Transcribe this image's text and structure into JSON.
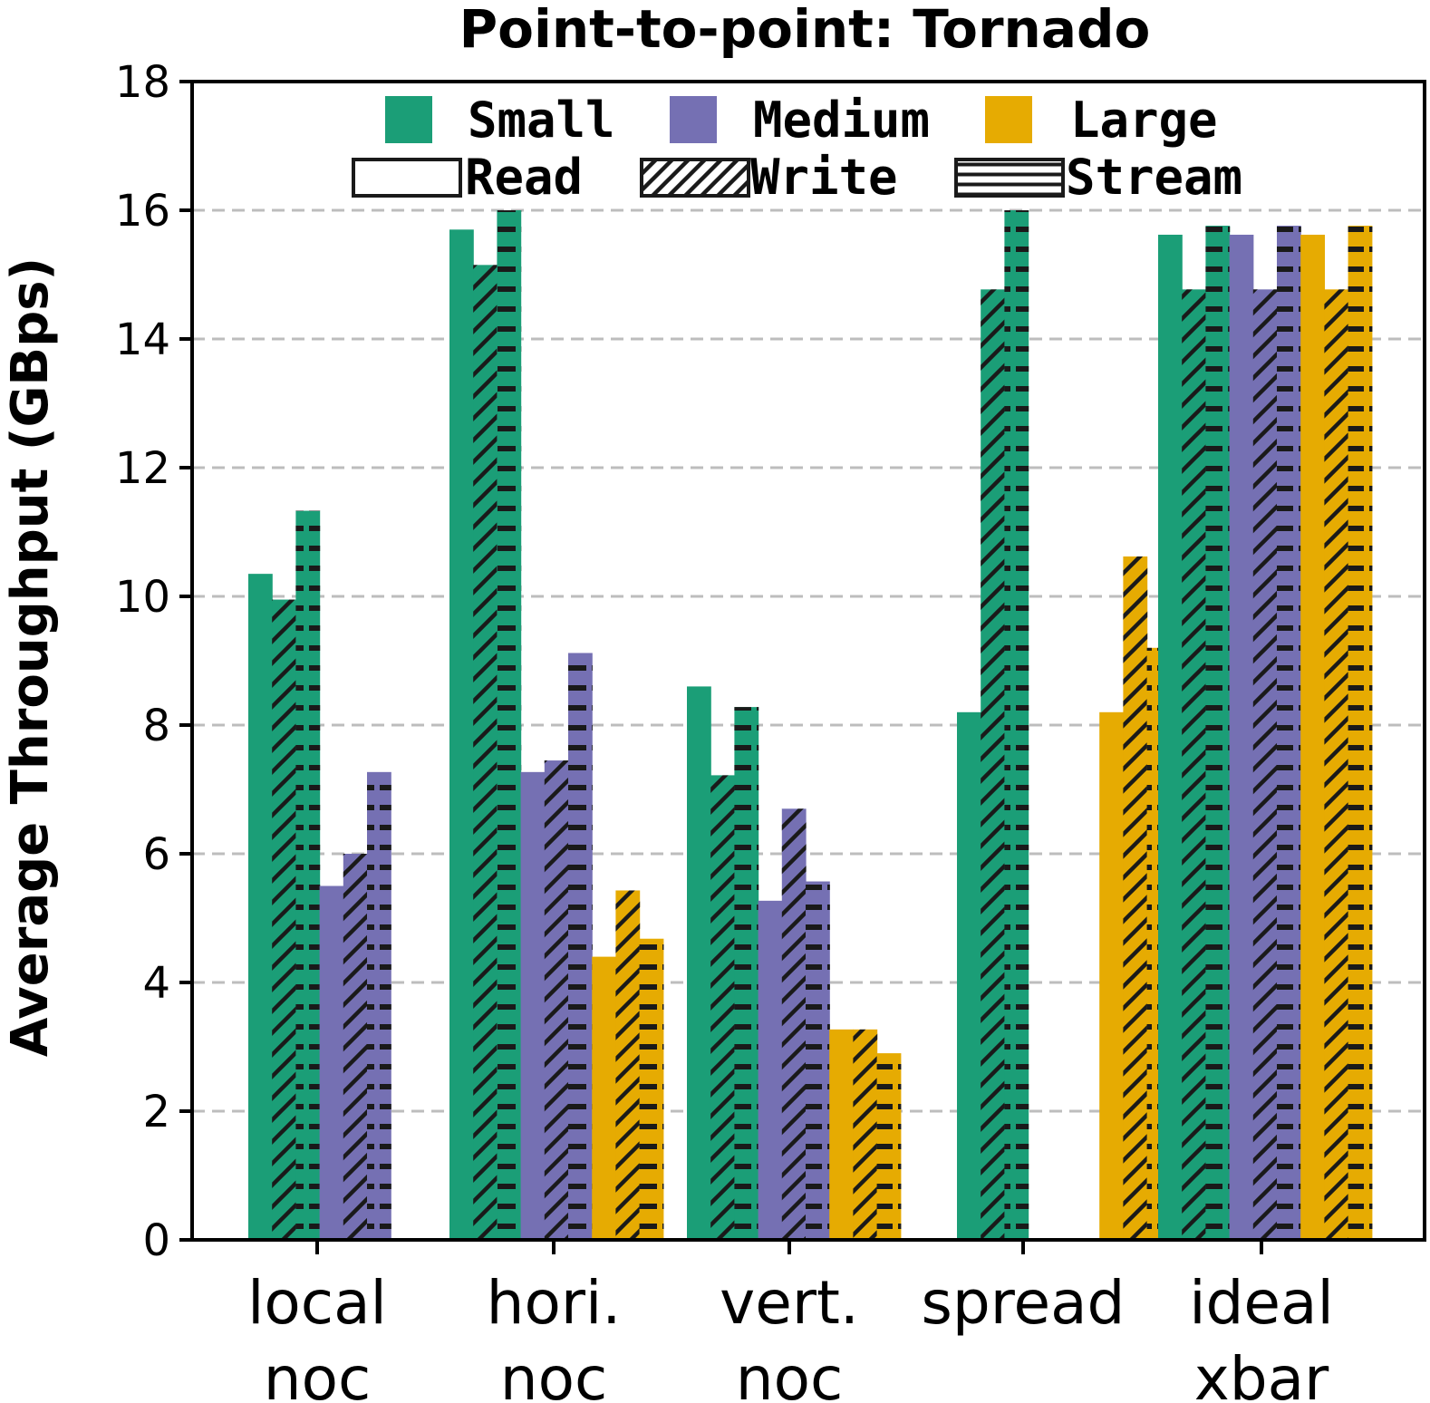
{
  "chart_data": {
    "type": "bar",
    "title": "Point-to-point: Tornado",
    "xlabel": "",
    "ylabel": "Average Throughput (GBps)",
    "ylim": [
      0,
      18
    ],
    "yticks": [
      "0",
      "2",
      "4",
      "6",
      "8",
      "10",
      "12",
      "14",
      "16",
      "18"
    ],
    "grid": true,
    "legend_position": "top-center",
    "categories": [
      {
        "line1": "local",
        "line2": "noc"
      },
      {
        "line1": "hori.",
        "line2": "noc"
      },
      {
        "line1": "vert.",
        "line2": "noc"
      },
      {
        "line1": "spread",
        "line2": ""
      },
      {
        "line1": "ideal",
        "line2": "xbar"
      }
    ],
    "sizes": [
      {
        "name": "Small",
        "color": "#1b9e77"
      },
      {
        "name": "Medium",
        "color": "#7570b3"
      },
      {
        "name": "Large",
        "color": "#e6ab02"
      }
    ],
    "patterns": [
      {
        "name": "Read",
        "hatch": "none"
      },
      {
        "name": "Write",
        "hatch": "diagonal"
      },
      {
        "name": "Stream",
        "hatch": "horizontal"
      }
    ],
    "series": [
      {
        "name": "Small Read",
        "size": "Small",
        "pattern": "Read",
        "values": [
          10.35,
          15.7,
          8.6,
          8.2,
          15.62
        ]
      },
      {
        "name": "Small Write",
        "size": "Small",
        "pattern": "Write",
        "values": [
          9.95,
          15.15,
          7.22,
          14.77,
          14.77
        ]
      },
      {
        "name": "Small Stream",
        "size": "Small",
        "pattern": "Stream",
        "values": [
          11.33,
          16.0,
          8.28,
          16.0,
          15.76
        ]
      },
      {
        "name": "Medium Read",
        "size": "Medium",
        "pattern": "Read",
        "values": [
          5.5,
          7.27,
          5.27,
          0,
          15.62
        ]
      },
      {
        "name": "Medium Write",
        "size": "Medium",
        "pattern": "Write",
        "values": [
          6.0,
          7.45,
          6.7,
          0,
          14.77
        ]
      },
      {
        "name": "Medium Stream",
        "size": "Medium",
        "pattern": "Stream",
        "values": [
          7.27,
          9.12,
          5.57,
          0,
          15.76
        ]
      },
      {
        "name": "Large Read",
        "size": "Large",
        "pattern": "Read",
        "values": [
          0,
          4.4,
          3.27,
          8.2,
          15.62
        ]
      },
      {
        "name": "Large Write",
        "size": "Large",
        "pattern": "Write",
        "values": [
          0,
          5.43,
          3.27,
          10.62,
          14.77
        ]
      },
      {
        "name": "Large Stream",
        "size": "Large",
        "pattern": "Stream",
        "values": [
          0,
          4.68,
          2.9,
          9.2,
          15.76
        ]
      }
    ],
    "bar_positions": [
      [
        0,
        1,
        2,
        3,
        4,
        5
      ],
      [
        0,
        1,
        2,
        3,
        4,
        5,
        6,
        7,
        8
      ],
      [
        0,
        1,
        2,
        3,
        4,
        5,
        6,
        7,
        8
      ],
      [
        0,
        1,
        2,
        6,
        7,
        8
      ],
      [
        0,
        1,
        2,
        3,
        4,
        5,
        6,
        7,
        8
      ]
    ]
  }
}
